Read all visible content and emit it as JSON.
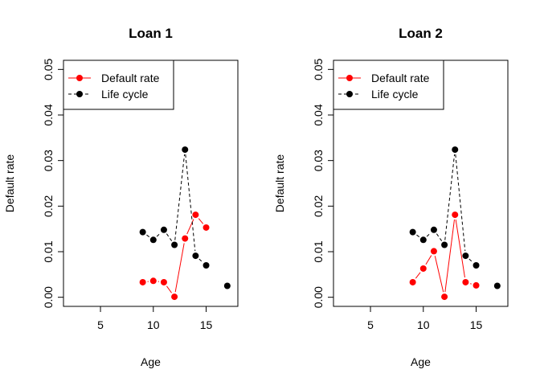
{
  "chart_data": [
    {
      "type": "line",
      "title": "Loan 1",
      "xlabel": "Age",
      "ylabel": "Default rate",
      "xlim": [
        1.5,
        18
      ],
      "ylim": [
        -0.002,
        0.052
      ],
      "xticks": [
        "5",
        "10",
        "15"
      ],
      "xtick_values": [
        5,
        10,
        15
      ],
      "yticks": [
        "0.00",
        "0.01",
        "0.02",
        "0.03",
        "0.04",
        "0.05"
      ],
      "ytick_values": [
        0,
        0.01,
        0.02,
        0.03,
        0.04,
        0.05
      ],
      "grid": false,
      "legend_position": "top-left",
      "series": [
        {
          "name": "Default rate",
          "color": "#ff0000",
          "line_style": "solid",
          "x": [
            9,
            10,
            11,
            12,
            13,
            14,
            15
          ],
          "y": [
            0.0033,
            0.0036,
            0.0033,
            0.0001,
            0.0129,
            0.0181,
            0.0153
          ]
        },
        {
          "name": "Life cycle",
          "color": "#000000",
          "line_style": "dashed",
          "x": [
            9,
            10,
            11,
            12,
            13,
            14,
            15,
            17
          ],
          "y": [
            0.0143,
            0.0126,
            0.0148,
            0.0115,
            0.0324,
            0.0091,
            0.007,
            0.0025
          ]
        }
      ]
    },
    {
      "type": "line",
      "title": "Loan 2",
      "xlabel": "Age",
      "ylabel": "Default rate",
      "xlim": [
        1.5,
        18
      ],
      "ylim": [
        -0.002,
        0.052
      ],
      "xticks": [
        "5",
        "10",
        "15"
      ],
      "xtick_values": [
        5,
        10,
        15
      ],
      "yticks": [
        "0.00",
        "0.01",
        "0.02",
        "0.03",
        "0.04",
        "0.05"
      ],
      "ytick_values": [
        0,
        0.01,
        0.02,
        0.03,
        0.04,
        0.05
      ],
      "grid": false,
      "legend_position": "top-left",
      "series": [
        {
          "name": "Default rate",
          "color": "#ff0000",
          "line_style": "solid",
          "x": [
            9,
            10,
            11,
            12,
            13,
            14,
            15
          ],
          "y": [
            0.0033,
            0.0063,
            0.0101,
            0.0001,
            0.0181,
            0.0033,
            0.0026
          ]
        },
        {
          "name": "Life cycle",
          "color": "#000000",
          "line_style": "dashed",
          "x": [
            9,
            10,
            11,
            12,
            13,
            14,
            15,
            17
          ],
          "y": [
            0.0143,
            0.0126,
            0.0148,
            0.0115,
            0.0324,
            0.0091,
            0.007,
            0.0025
          ]
        }
      ]
    }
  ]
}
